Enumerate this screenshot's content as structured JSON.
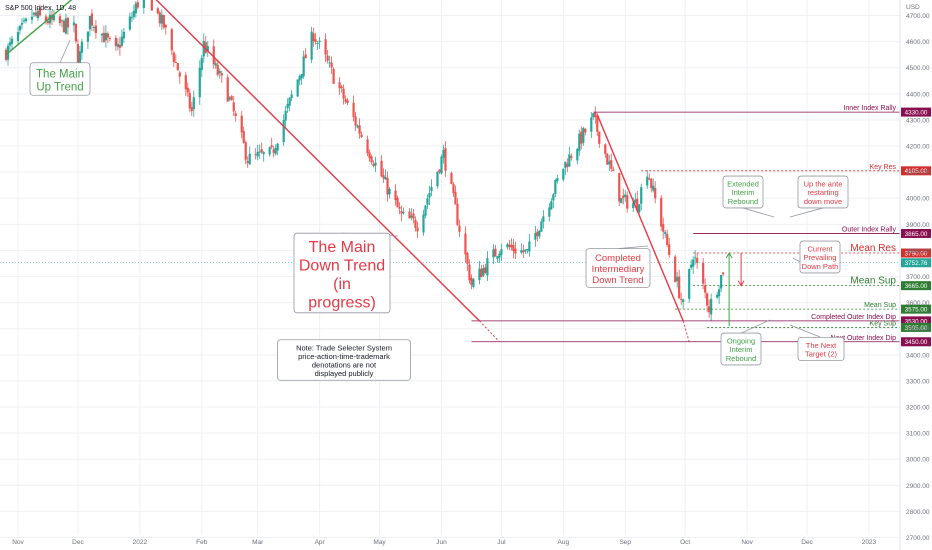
{
  "header": {
    "symbol": "S&P 500 Index, 1D, 48"
  },
  "colors": {
    "up": "#26a69a",
    "down": "#ef5350",
    "trend_green": "#43a047",
    "trend_red": "#e53946",
    "maroon": "#880e4f",
    "red_level": "#d32f2f",
    "green_level": "#2e7d32",
    "grid": "#eef0f3",
    "axis_text": "#6b6f7b",
    "current_price": "#26a69a"
  },
  "chart_data": {
    "type": "candlestick",
    "y_axis": {
      "unit": "USD",
      "min": 2650,
      "max": 4800,
      "ticks": [
        2700,
        2800,
        2900,
        3000,
        3100,
        3200,
        3300,
        3400,
        3500,
        3600,
        3700,
        3800,
        3900,
        4000,
        4100,
        4200,
        4300,
        4400,
        4500,
        4600,
        4700
      ]
    },
    "x_axis": {
      "ticks": [
        {
          "label": "Nov",
          "date": "2021-11-01"
        },
        {
          "label": "Dec",
          "date": "2021-12-01"
        },
        {
          "label": "2022",
          "date": "2022-01-01"
        },
        {
          "label": "Feb",
          "date": "2022-02-01"
        },
        {
          "label": "Mar",
          "date": "2022-03-01"
        },
        {
          "label": "Apr",
          "date": "2022-04-01"
        },
        {
          "label": "May",
          "date": "2022-05-01"
        },
        {
          "label": "Jun",
          "date": "2022-06-01"
        },
        {
          "label": "Jul",
          "date": "2022-07-01"
        },
        {
          "label": "Aug",
          "date": "2022-08-01"
        },
        {
          "label": "Sep",
          "date": "2022-09-01"
        },
        {
          "label": "Oct",
          "date": "2022-10-01"
        },
        {
          "label": "Nov",
          "date": "2022-11-01"
        },
        {
          "label": "Dec",
          "date": "2022-12-01"
        },
        {
          "label": "2023",
          "date": "2023-01-01"
        }
      ]
    },
    "close_path": [
      {
        "date": "2021-10-26",
        "close": 4560
      },
      {
        "date": "2021-11-08",
        "close": 4700
      },
      {
        "date": "2021-11-29",
        "close": 4650
      },
      {
        "date": "2021-12-01",
        "close": 4520
      },
      {
        "date": "2021-12-07",
        "close": 4690
      },
      {
        "date": "2021-12-20",
        "close": 4560
      },
      {
        "date": "2022-01-03",
        "close": 4800
      },
      {
        "date": "2022-01-13",
        "close": 4660
      },
      {
        "date": "2022-01-27",
        "close": 4330
      },
      {
        "date": "2022-02-02",
        "close": 4590
      },
      {
        "date": "2022-02-14",
        "close": 4400
      },
      {
        "date": "2022-02-24",
        "close": 4150
      },
      {
        "date": "2022-03-08",
        "close": 4170
      },
      {
        "date": "2022-03-29",
        "close": 4630
      },
      {
        "date": "2022-04-12",
        "close": 4400
      },
      {
        "date": "2022-04-29",
        "close": 4130
      },
      {
        "date": "2022-05-12",
        "close": 3930
      },
      {
        "date": "2022-05-20",
        "close": 3900
      },
      {
        "date": "2022-06-02",
        "close": 4170
      },
      {
        "date": "2022-06-16",
        "close": 3670
      },
      {
        "date": "2022-07-01",
        "close": 3820
      },
      {
        "date": "2022-07-14",
        "close": 3790
      },
      {
        "date": "2022-08-01",
        "close": 4120
      },
      {
        "date": "2022-08-16",
        "close": 4305
      },
      {
        "date": "2022-08-30",
        "close": 3990
      },
      {
        "date": "2022-09-07",
        "close": 3980
      },
      {
        "date": "2022-09-12",
        "close": 4110
      },
      {
        "date": "2022-09-30",
        "close": 3585
      },
      {
        "date": "2022-10-05",
        "close": 3790
      },
      {
        "date": "2022-10-13",
        "close": 3580
      },
      {
        "date": "2022-10-19",
        "close": 3700
      },
      {
        "date": "2022-10-21",
        "close": 3752
      }
    ],
    "trendlines": [
      {
        "name": "The Main Up Trend",
        "color": "trend_green",
        "from": {
          "date": "2021-10-26",
          "price": 4550
        },
        "to": {
          "date": "2021-12-04",
          "price": 4800
        }
      },
      {
        "name": "The Main Down Trend (in progress)",
        "color": "trend_red",
        "from": {
          "date": "2022-01-04",
          "price": 4800
        },
        "to": {
          "date": "2022-06-20",
          "price": 3530
        }
      },
      {
        "name": "Completed Intermediary Down Trend",
        "color": "trend_red",
        "from": {
          "date": "2022-08-18",
          "price": 4320
        },
        "to": {
          "date": "2022-09-30",
          "price": 3530
        }
      }
    ],
    "price_levels": [
      {
        "label": "Inner Index Rally",
        "value": 4330,
        "badge": "4330.00",
        "color": "maroon",
        "style": "solid",
        "start": "2022-08-16",
        "text_size": "small"
      },
      {
        "label": "Key Res",
        "value": 4105,
        "badge": "4105.00",
        "color": "red_level",
        "style": "dotted",
        "start": "2022-09-09",
        "text_size": "small"
      },
      {
        "label": "Outer Index Rally",
        "value": 3865,
        "badge": "3865.00",
        "color": "maroon",
        "style": "solid",
        "start": "2022-10-05",
        "text_size": "small"
      },
      {
        "label": "Mean Res",
        "value": 3790,
        "badge": "3790.00",
        "color": "red_level",
        "style": "dotted",
        "start": "2022-10-05",
        "text_size": "large"
      },
      {
        "label": "Mean Sup",
        "value": 3665,
        "badge": "3665.00",
        "color": "green_level",
        "style": "dotted",
        "start": "2022-10-05",
        "text_size": "large"
      },
      {
        "label": "Mean Sup",
        "value": 3575,
        "badge": "3575.00",
        "color": "green_level",
        "style": "dotted",
        "start": "2022-09-26",
        "text_size": "small"
      },
      {
        "label": "Completed Outer Index Dip",
        "value": 3530,
        "badge": "3530.00",
        "color": "maroon",
        "style": "solid",
        "start": "2022-06-16",
        "text_size": "small"
      },
      {
        "label": "Key Sup",
        "value": 3505,
        "badge": "3505.00",
        "color": "green_level",
        "style": "dotted",
        "start": "2022-10-12",
        "text_size": "small"
      },
      {
        "label": "Next Outer Index Dip",
        "value": 3450,
        "badge": "3450.00",
        "color": "maroon",
        "style": "solid",
        "start": "2022-06-16",
        "text_size": "small"
      }
    ],
    "current_price": {
      "value": 3752.76,
      "badge": "3752.76"
    },
    "annotations": {
      "main_up_trend": "The Main Up Trend",
      "main_down_trend": "The Main Down Trend (in progress)",
      "completed_intermediary": "Completed Intermediary Down Trend",
      "extended_interim": "Extended Interim Rebound",
      "up_the_ante": "Up the ante restarting down move",
      "current_prevailing": "Current Prevailing Down Path",
      "ongoing_interim": "Ongoing Interim Rebound",
      "next_target": "The Next Target (2)",
      "note": "Note: Trade Selecter System price-action-time-trademark denotations are not displayed publicly"
    }
  }
}
